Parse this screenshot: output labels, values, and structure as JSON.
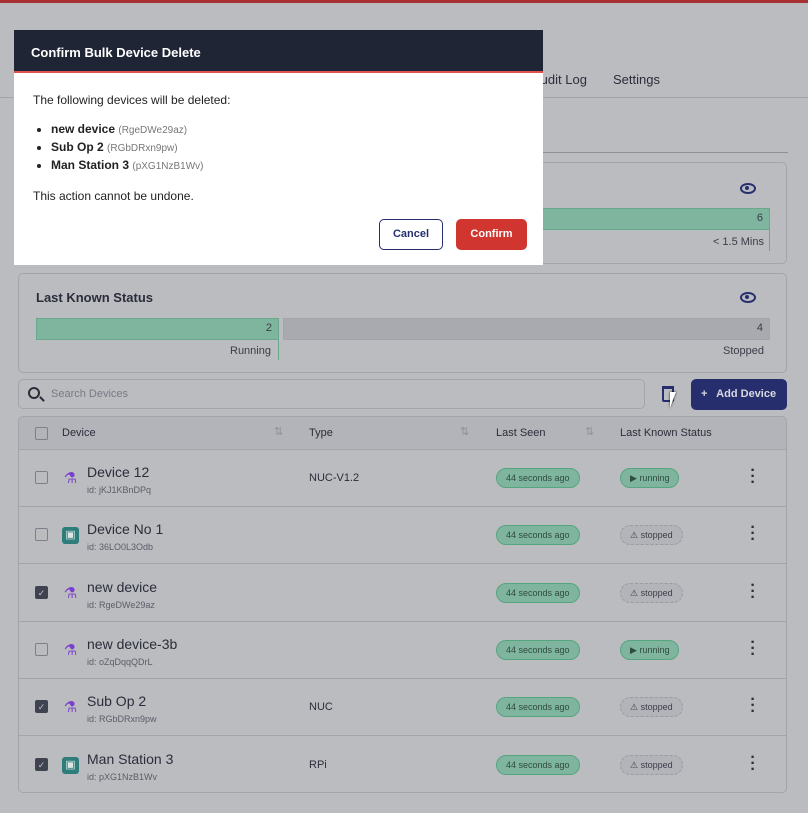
{
  "tabs": [
    {
      "label": "Audit Log"
    },
    {
      "label": "Settings"
    }
  ],
  "card1": {
    "bar_value": "6",
    "bar_label": "< 1.5 Mins"
  },
  "card2": {
    "title": "Last Known Status",
    "running_value": "2",
    "running_label": "Running",
    "stopped_value": "4",
    "stopped_label": "Stopped"
  },
  "search": {
    "placeholder": "Search Devices"
  },
  "add_device_label": "+   Add Device",
  "table": {
    "headers": {
      "device": "Device",
      "type": "Type",
      "last_seen": "Last Seen",
      "status": "Last Known Status"
    },
    "rows": [
      {
        "name": "Device 12",
        "id": "id: jKJ1KBnDPq",
        "type": "NUC-V1.2",
        "icon": "flask",
        "checked": false,
        "last_seen": "44 seconds ago",
        "status": "running"
      },
      {
        "name": "Device No 1",
        "id": "id: 36LO0L3Odb",
        "type": "",
        "icon": "chip",
        "checked": false,
        "last_seen": "44 seconds ago",
        "status": "stopped"
      },
      {
        "name": "new device",
        "id": "id: RgeDWe29az",
        "type": "",
        "icon": "flask",
        "checked": true,
        "last_seen": "44 seconds ago",
        "status": "stopped"
      },
      {
        "name": "new device-3b",
        "id": "id: oZqDqqQDrL",
        "type": "",
        "icon": "flask",
        "checked": false,
        "last_seen": "44 seconds ago",
        "status": "running"
      },
      {
        "name": "Sub Op 2",
        "id": "id: RGbDRxn9pw",
        "type": "NUC",
        "icon": "flask",
        "checked": true,
        "last_seen": "44 seconds ago",
        "status": "stopped"
      },
      {
        "name": "Man Station 3",
        "id": "id: pXG1NzB1Wv",
        "type": "RPi",
        "icon": "chip",
        "checked": true,
        "last_seen": "44 seconds ago",
        "status": "stopped"
      }
    ]
  },
  "modal": {
    "title": "Confirm Bulk Device Delete",
    "intro": "The following devices will be deleted:",
    "items": [
      {
        "name": "new device",
        "id": "(RgeDWe29az)"
      },
      {
        "name": "Sub Op 2",
        "id": "(RGbDRxn9pw)"
      },
      {
        "name": "Man Station 3",
        "id": "(pXG1NzB1Wv)"
      }
    ],
    "warning": "This action cannot be undone.",
    "cancel": "Cancel",
    "confirm": "Confirm"
  },
  "colors": {
    "accent": "#262e6e",
    "confirm": "#d0352f",
    "running": "#7fb59e",
    "modal_header": "#1f2535"
  }
}
